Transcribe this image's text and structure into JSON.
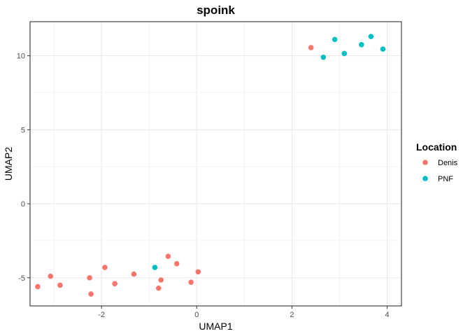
{
  "chart_data": {
    "type": "scatter",
    "title": "spoink",
    "xlabel": "UMAP1",
    "ylabel": "UMAP2",
    "xlim": [
      -3.5,
      4.3
    ],
    "ylim": [
      -6.9,
      12.3
    ],
    "x_ticks": [
      -2,
      0,
      2,
      4
    ],
    "y_ticks": [
      -5,
      0,
      5,
      10
    ],
    "x_tick_labels": [
      "-2",
      "0",
      "2",
      "4"
    ],
    "y_tick_labels": [
      "-5",
      "0",
      "5",
      "10"
    ],
    "grid": true,
    "legend_title": "Location",
    "legend_position": "right",
    "series": [
      {
        "name": "Denis",
        "color": "#F8766D",
        "points": [
          {
            "x": -3.34,
            "y": -5.6
          },
          {
            "x": -3.07,
            "y": -4.9
          },
          {
            "x": -2.87,
            "y": -5.5
          },
          {
            "x": -2.25,
            "y": -5.0
          },
          {
            "x": -2.22,
            "y": -6.1
          },
          {
            "x": -1.93,
            "y": -4.3
          },
          {
            "x": -1.72,
            "y": -5.4
          },
          {
            "x": -1.32,
            "y": -4.75
          },
          {
            "x": -0.8,
            "y": -5.7
          },
          {
            "x": -0.75,
            "y": -5.15
          },
          {
            "x": -0.6,
            "y": -3.55
          },
          {
            "x": -0.42,
            "y": -4.05
          },
          {
            "x": -0.12,
            "y": -5.3
          },
          {
            "x": 0.03,
            "y": -4.6
          },
          {
            "x": 2.4,
            "y": 10.55
          }
        ]
      },
      {
        "name": "PNF",
        "color": "#00BFC4",
        "points": [
          {
            "x": -0.88,
            "y": -4.3
          },
          {
            "x": 2.66,
            "y": 9.9
          },
          {
            "x": 2.9,
            "y": 11.1
          },
          {
            "x": 3.1,
            "y": 10.15
          },
          {
            "x": 3.46,
            "y": 10.75
          },
          {
            "x": 3.66,
            "y": 11.3
          },
          {
            "x": 3.91,
            "y": 10.45
          }
        ]
      }
    ]
  }
}
